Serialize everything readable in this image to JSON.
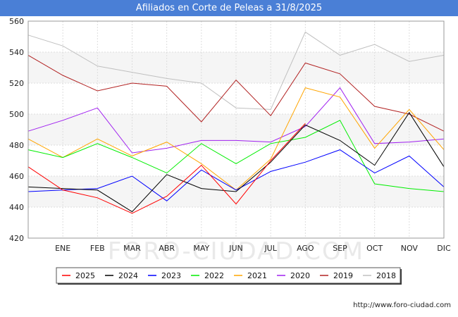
{
  "chart_data": {
    "type": "line",
    "title": "Afiliados en Corte de Peleas a 31/8/2025",
    "categories": [
      "",
      "ENE",
      "FEB",
      "MAR",
      "ABR",
      "MAY",
      "JUN",
      "JUL",
      "AGO",
      "SEP",
      "OCT",
      "NOV",
      "DIC"
    ],
    "ylim": [
      420,
      560
    ],
    "yticks": [
      420,
      440,
      460,
      480,
      500,
      520,
      540,
      560
    ],
    "grid": true,
    "legend_position": "bottom",
    "series": [
      {
        "name": "2025",
        "color": "#ff0000",
        "values": [
          466,
          451,
          446,
          436,
          447,
          467,
          442,
          470,
          494,
          null,
          null,
          null,
          null
        ]
      },
      {
        "name": "2024",
        "color": "#000000",
        "values": [
          453,
          452,
          451,
          437,
          461,
          452,
          450,
          469,
          493,
          483,
          467,
          501,
          466
        ]
      },
      {
        "name": "2023",
        "color": "#0000ff",
        "values": [
          450,
          451,
          452,
          460,
          444,
          464,
          451,
          463,
          469,
          477,
          462,
          473,
          453
        ]
      },
      {
        "name": "2022",
        "color": "#00ee00",
        "values": [
          477,
          472,
          481,
          472,
          462,
          481,
          468,
          481,
          485,
          496,
          455,
          452,
          450
        ]
      },
      {
        "name": "2021",
        "color": "#ffa500",
        "values": [
          484,
          472,
          484,
          473,
          482,
          468,
          451,
          471,
          517,
          511,
          478,
          503,
          477
        ]
      },
      {
        "name": "2020",
        "color": "#a020f0",
        "values": [
          489,
          496,
          504,
          475,
          478,
          483,
          483,
          482,
          492,
          517,
          481,
          482,
          484
        ]
      },
      {
        "name": "2019",
        "color": "#b22222",
        "values": [
          538,
          525,
          515,
          520,
          518,
          495,
          522,
          499,
          533,
          526,
          505,
          500,
          489
        ]
      },
      {
        "name": "2018",
        "color": "#c0c0c0",
        "values": [
          551,
          544,
          531,
          527,
          523,
          520,
          504,
          503,
          553,
          538,
          545,
          534,
          538
        ]
      }
    ]
  },
  "footer": {
    "url": "http://www.foro-ciudad.com"
  },
  "watermark": "FORO-CIUDAD.COM"
}
